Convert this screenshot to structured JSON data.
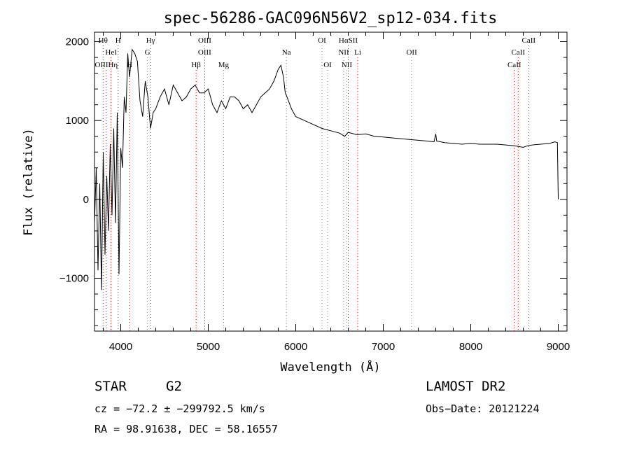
{
  "chart_data": {
    "type": "line",
    "title": "spec-56286-GAC096N56V2_sp12-034.fits",
    "xlabel": "Wavelength (Å)",
    "ylabel": "Flux (relative)",
    "xlim": [
      3700,
      9100
    ],
    "ylim": [
      -1670,
      2120
    ],
    "x_ticks": [
      4000,
      5000,
      6000,
      7000,
      8000,
      9000
    ],
    "y_ticks": [
      -1000,
      0,
      1000,
      2000
    ],
    "grid": false,
    "line_color": "#000000",
    "marker_color": "#cc0000",
    "spectrum": {
      "x": [
        3700,
        3720,
        3740,
        3760,
        3780,
        3800,
        3820,
        3840,
        3860,
        3880,
        3900,
        3920,
        3940,
        3960,
        3980,
        4000,
        4020,
        4040,
        4060,
        4080,
        4100,
        4130,
        4160,
        4190,
        4220,
        4250,
        4280,
        4310,
        4340,
        4370,
        4400,
        4450,
        4500,
        4550,
        4600,
        4650,
        4700,
        4750,
        4800,
        4850,
        4900,
        4950,
        5000,
        5050,
        5100,
        5150,
        5200,
        5250,
        5300,
        5350,
        5400,
        5450,
        5500,
        5550,
        5600,
        5650,
        5700,
        5750,
        5800,
        5830,
        5860,
        5880,
        5900,
        5950,
        6000,
        6100,
        6200,
        6300,
        6400,
        6500,
        6560,
        6600,
        6700,
        6800,
        6900,
        7000,
        7100,
        7200,
        7300,
        7400,
        7500,
        7580,
        7600,
        7610,
        7700,
        7800,
        7900,
        8000,
        8100,
        8200,
        8300,
        8400,
        8500,
        8550,
        8600,
        8650,
        8700,
        8800,
        8900,
        8960,
        8990,
        9000
      ],
      "y": [
        -300,
        400,
        -900,
        200,
        -1150,
        600,
        -700,
        300,
        -400,
        700,
        -200,
        900,
        -300,
        1100,
        -950,
        650,
        400,
        1300,
        1100,
        1850,
        1550,
        1900,
        1850,
        1750,
        1250,
        1050,
        1500,
        1300,
        900,
        1100,
        1150,
        1300,
        1400,
        1200,
        1450,
        1350,
        1250,
        1300,
        1400,
        1450,
        1350,
        1350,
        1400,
        1200,
        1100,
        1250,
        1150,
        1300,
        1300,
        1250,
        1150,
        1200,
        1100,
        1200,
        1300,
        1350,
        1400,
        1500,
        1650,
        1700,
        1550,
        1350,
        1300,
        1150,
        1050,
        1000,
        950,
        900,
        870,
        840,
        800,
        850,
        820,
        830,
        800,
        790,
        780,
        770,
        760,
        750,
        740,
        730,
        830,
        740,
        720,
        710,
        700,
        710,
        700,
        700,
        700,
        690,
        680,
        670,
        660,
        680,
        690,
        700,
        710,
        730,
        720,
        0
      ]
    },
    "line_markers": [
      {
        "label": "Hθ",
        "x": 3798,
        "row": 1,
        "color": "#cc0000"
      },
      {
        "label": "H",
        "x": 3970,
        "row": 1,
        "color": "#cc0000"
      },
      {
        "label": "Hγ",
        "x": 4341,
        "row": 1,
        "color": "#cc0000"
      },
      {
        "label": "OIII",
        "x": 4960,
        "row": 1,
        "color": "#808080"
      },
      {
        "label": "OI",
        "x": 6300,
        "row": 1,
        "color": "#808080"
      },
      {
        "label": "HαSII",
        "x": 6600,
        "row": 1,
        "color": "#cc0000"
      },
      {
        "label": "CaII",
        "x": 8662,
        "row": 1,
        "color": "#cc0000"
      },
      {
        "label": "HeI",
        "x": 3889,
        "row": 2,
        "color": "#cc0000"
      },
      {
        "label": "G",
        "x": 4305,
        "row": 2,
        "color": "#808080"
      },
      {
        "label": "OIII",
        "x": 4959,
        "row": 2,
        "color": "#808080"
      },
      {
        "label": "Na",
        "x": 5893,
        "row": 2,
        "color": "#808080"
      },
      {
        "label": "NII",
        "x": 6548,
        "row": 2,
        "color": "#808080"
      },
      {
        "label": "Li",
        "x": 6708,
        "row": 2,
        "color": "#cc0000"
      },
      {
        "label": "OII",
        "x": 7325,
        "row": 2,
        "color": "#808080"
      },
      {
        "label": "CaII",
        "x": 8542,
        "row": 2,
        "color": "#cc0000"
      },
      {
        "label": "OIIIHη",
        "x": 3835,
        "row": 3,
        "color": "#cc0000"
      },
      {
        "label": "H",
        "x": 4101,
        "row": 3,
        "color": "#cc0000"
      },
      {
        "label": "Hβ",
        "x": 4861,
        "row": 3,
        "color": "#cc0000"
      },
      {
        "label": "Mg",
        "x": 5175,
        "row": 3,
        "color": "#808080"
      },
      {
        "label": "OI",
        "x": 6364,
        "row": 3,
        "color": "#808080"
      },
      {
        "label": "NII",
        "x": 6583,
        "row": 3,
        "color": "#808080"
      },
      {
        "label": "CaII",
        "x": 8498,
        "row": 3,
        "color": "#cc0000"
      }
    ]
  },
  "info": {
    "object_class": "STAR",
    "subclass": "G2",
    "survey": "LAMOST DR2",
    "cz": "cz = −72.2 ± −299792.5 km/s",
    "obs_date": "Obs−Date: 20121224",
    "coords": "RA =  98.91638, DEC =  58.16557"
  }
}
